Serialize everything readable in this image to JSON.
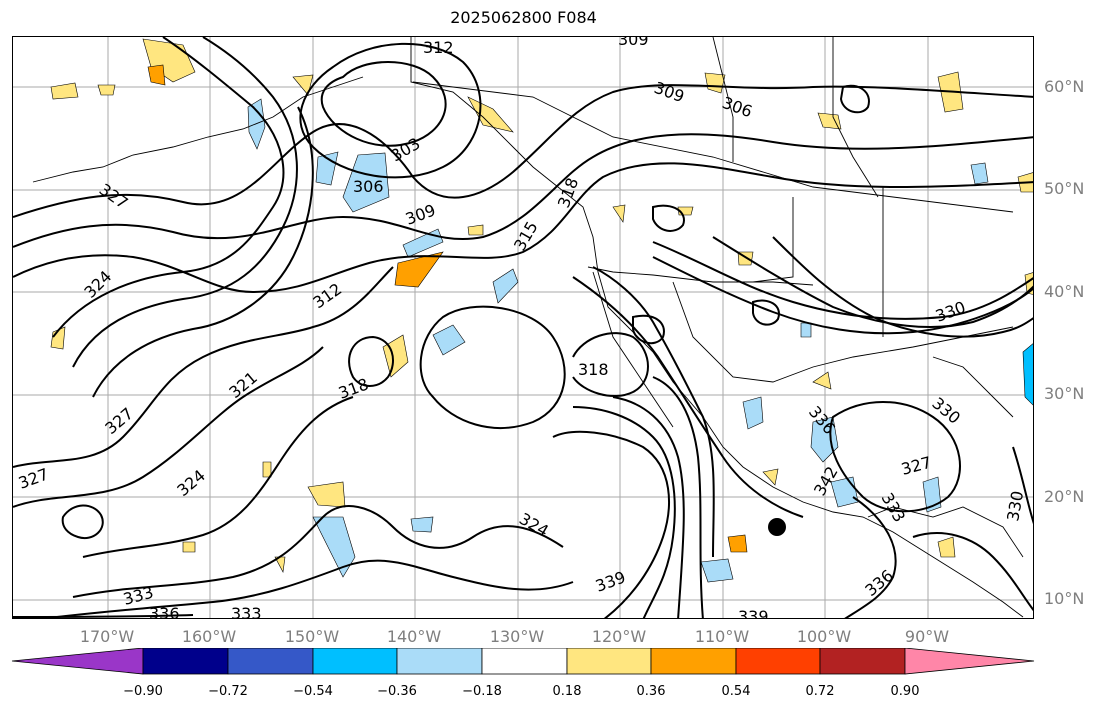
{
  "title": "2025062800 F084",
  "lat_labels": [
    "60°N",
    "50°N",
    "40°N",
    "30°N",
    "20°N",
    "10°N"
  ],
  "lon_labels": [
    "170°W",
    "160°W",
    "150°W",
    "140°W",
    "130°W",
    "120°W",
    "110°W",
    "100°W",
    "90°W"
  ],
  "contour_labels": [
    "312",
    "309",
    "309",
    "306",
    "303",
    "306",
    "327",
    "309",
    "315",
    "318",
    "324",
    "312",
    "321",
    "318",
    "327",
    "327",
    "324",
    "324",
    "318",
    "336",
    "330",
    "327",
    "342",
    "333",
    "330",
    "339",
    "336",
    "333",
    "339",
    "333",
    "336",
    "330"
  ],
  "colorbar": {
    "ticks": [
      "−0.90",
      "−0.72",
      "−0.54",
      "−0.36",
      "−0.18",
      "0.18",
      "0.36",
      "0.54",
      "0.72",
      "0.90"
    ],
    "colors": [
      "#9a36c8",
      "#00008b",
      "#3558c8",
      "#00bfff",
      "#aadcf8",
      "#ffffff",
      "#ffe680",
      "#ffa000",
      "#ff4000",
      "#b22222",
      "#ff86a8"
    ]
  },
  "marker": "center-dot"
}
